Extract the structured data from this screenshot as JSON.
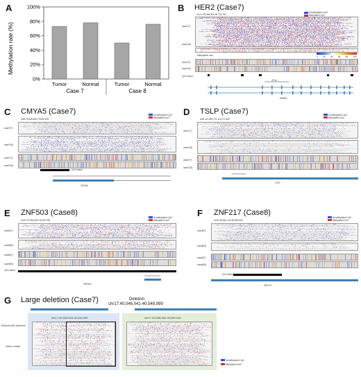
{
  "panels": {
    "A": {
      "letter": "A"
    },
    "B": {
      "letter": "B",
      "title": "HER2 (Case7)",
      "coords": "Chr17:39,684,904-39,732,764",
      "legend_unmeth": "Unmethylated CpG",
      "legend_meth": "Methylated CpG",
      "methylation_rate": "Methylation rate",
      "scale_ticks": [
        "0",
        "20",
        "40",
        "60",
        "80",
        "100"
      ],
      "scale_length": "47 kb",
      "gene": "ERBB2",
      "track_labels": [
        "case7(T)",
        "case7(N)"
      ],
      "track_labels2": [
        "case7(T)",
        "case7(N)"
      ],
      "cpg_label": "CpG island"
    },
    "C": {
      "letter": "C",
      "title": "CMYA5 (Case7)",
      "coords": "chr5:79,685,625-79,695,678",
      "legend_unmeth": "Unmethylated CpG",
      "legend_meth": "Methylated CpG",
      "track_labels": [
        "case7(T)",
        "case7(N)",
        "case7(T)",
        "case7(N)"
      ],
      "cpg_label": "CpG island",
      "gene": "CMYA5"
    },
    "D": {
      "letter": "D",
      "title": "TSLP (Case7)",
      "coords": "chr5:111,069,701-111,071,050",
      "legend_unmeth": "Unmethylated CpG",
      "legend_meth": "Methylated CpG",
      "track_labels": [
        "case7(T)",
        "case7(N)",
        "case7(T)",
        "case7(N)"
      ],
      "gene": "TSLP"
    },
    "E": {
      "letter": "E",
      "title": "ZNF503 (Case8)",
      "coords": "chr10:75,394,495-75,403,798",
      "legend_unmeth": "Unmethylated CpG",
      "legend_meth": "Methylated CpG",
      "track_labels": [
        "case8(T)",
        "case8(N)",
        "case8(T)",
        "case8(N)"
      ],
      "cpg_label": "CpG island",
      "gene": "ZNF503"
    },
    "F": {
      "letter": "F",
      "title": "ZNF217 (Case8)",
      "coords": "chr20:53,561,143-53,582,930",
      "legend_unmeth": "Unmethylated CpG",
      "legend_meth": "Methylated CpG",
      "track_labels": [
        "case8(T)",
        "case8(N)",
        "case8(T)",
        "case8(N)"
      ],
      "cpg_label": "CpG island",
      "gene": "ZNF217"
    },
    "G": {
      "letter": "G",
      "title": "Large deletion (Case7)",
      "deletion_label": "Deletion",
      "deletion_coords": "chr17:40,046,041-40,548,999",
      "left_coords": "chr17:40,045,023-40,046,059",
      "right_coords": "chr17:40,548,962-40,550,018",
      "reads_with_deletion": "Reads with deletion",
      "other_reads": "Other reads",
      "legend_unmeth": "Unmethylated CpG",
      "legend_meth": "Methylated CpG"
    }
  },
  "colors": {
    "unmeth": "#2f4fd6",
    "meth": "#d62f2f",
    "bar": "#a6a6a6",
    "gene": "#3d7fb5",
    "left_box": "#dce7f5",
    "right_box": "#e3efd9"
  },
  "chart_data": {
    "type": "bar",
    "categories": [
      "Tumor",
      "Normal",
      "Tumor",
      "Normal"
    ],
    "groups": [
      "Case 7",
      "Case 8"
    ],
    "values": [
      73,
      78,
      50,
      76
    ],
    "ylabel": "Methylation rate (%)",
    "yticks": [
      "0%",
      "20%",
      "40%",
      "60%",
      "80%",
      "100%"
    ],
    "ylim": [
      0,
      100
    ],
    "grid": false
  }
}
